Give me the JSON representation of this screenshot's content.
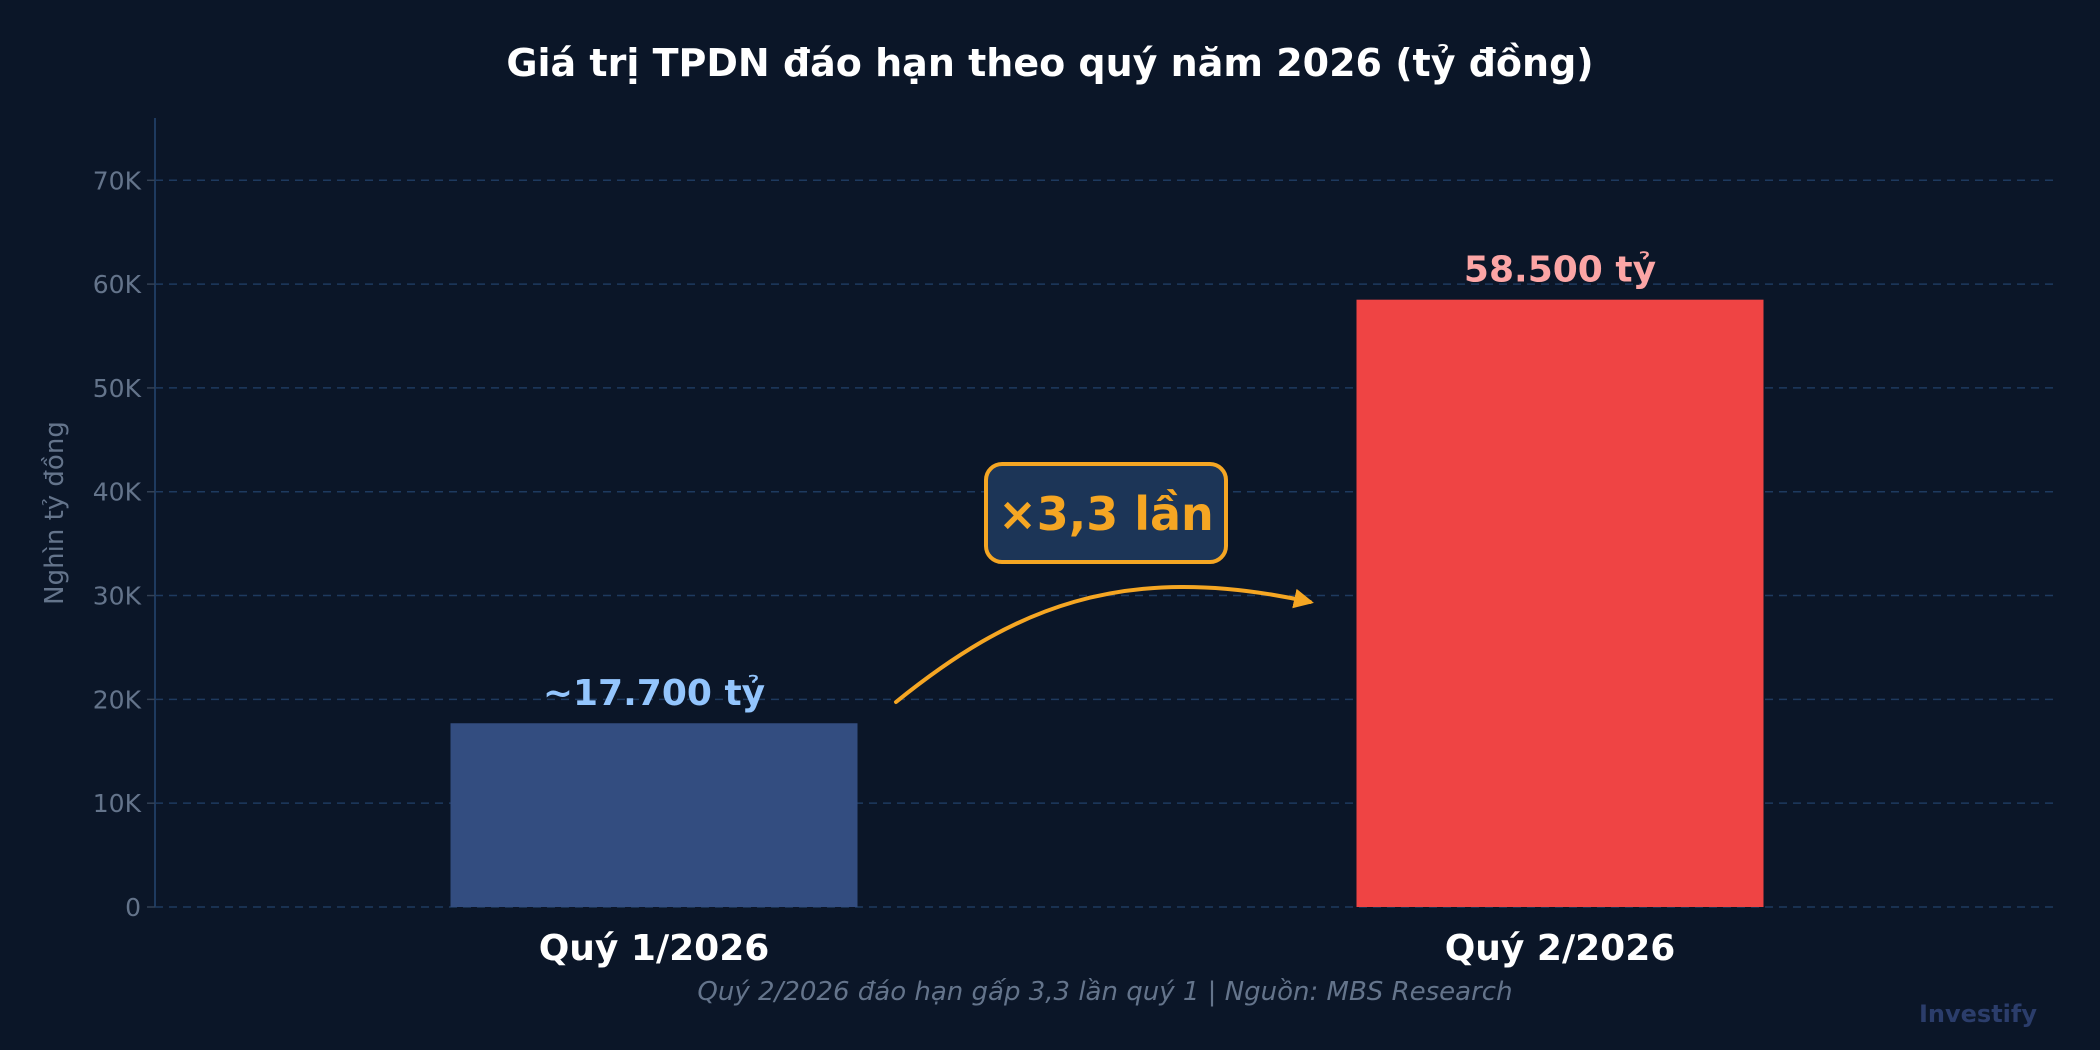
{
  "chart_data": {
    "type": "bar",
    "title": "Giá trị TPDN đáo hạn theo quý năm 2026 (tỷ đồng)",
    "xlabel": "",
    "ylabel": "Nghìn tỷ đồng",
    "ylim": [
      0,
      76000
    ],
    "yticks": [
      0,
      10000,
      20000,
      30000,
      40000,
      50000,
      60000,
      70000
    ],
    "ytick_labels": [
      "0",
      "10K",
      "20K",
      "30K",
      "40K",
      "50K",
      "60K",
      "70K"
    ],
    "grid": true,
    "categories": [
      "Quý 1/2026",
      "Quý 2/2026"
    ],
    "values": [
      17700,
      58500
    ],
    "data_labels": [
      "~17.700 tỷ",
      "58.500 tỷ"
    ],
    "colors": {
      "bars": [
        "#334d80",
        "#ef4444"
      ],
      "labels": [
        "#93c5fd",
        "#fca5a5"
      ],
      "accent": "#f5a623",
      "annotation_fill": "#1c3557",
      "background": "#0b1628",
      "grid": "#1e3a5f"
    },
    "annotation": "×3,3 lần",
    "caption": "Quý 2/2026 đáo hạn gấp 3,3 lần quý 1  |  Nguồn: MBS Research",
    "watermark": "Investify"
  }
}
